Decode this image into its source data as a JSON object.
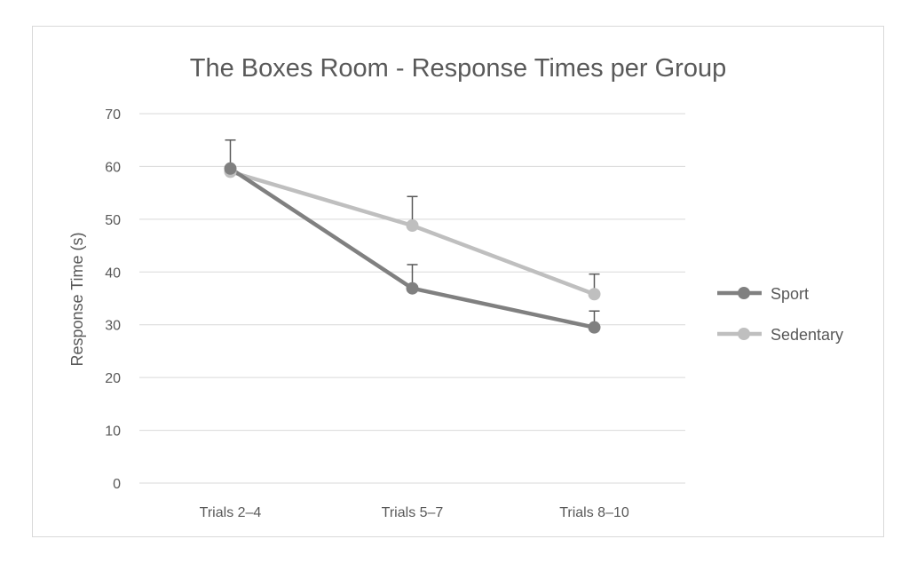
{
  "chart_data": {
    "type": "line",
    "title": "The Boxes Room - Response Times per Group",
    "xlabel": "",
    "ylabel": "Response Time (s)",
    "categories": [
      "Trials 2–4",
      "Trials 5–7",
      "Trials 8–10"
    ],
    "yticks": [
      "0",
      "10",
      "20",
      "30",
      "40",
      "50",
      "60",
      "70"
    ],
    "ylim": [
      0,
      70
    ],
    "grid": true,
    "legend_position": "right",
    "series": [
      {
        "name": "Sport",
        "values": [
          59.6,
          36.9,
          29.5
        ],
        "error_plus": [
          5.4,
          4.5,
          3.1
        ],
        "color": "#808080"
      },
      {
        "name": "Sedentary",
        "values": [
          59.0,
          48.8,
          35.8
        ],
        "error_plus": [
          0,
          5.5,
          3.8
        ],
        "color": "#bfbfbf"
      }
    ],
    "colors": {
      "grid": "#d9d9d9",
      "text": "#595959",
      "error_bar": "#595959"
    }
  }
}
